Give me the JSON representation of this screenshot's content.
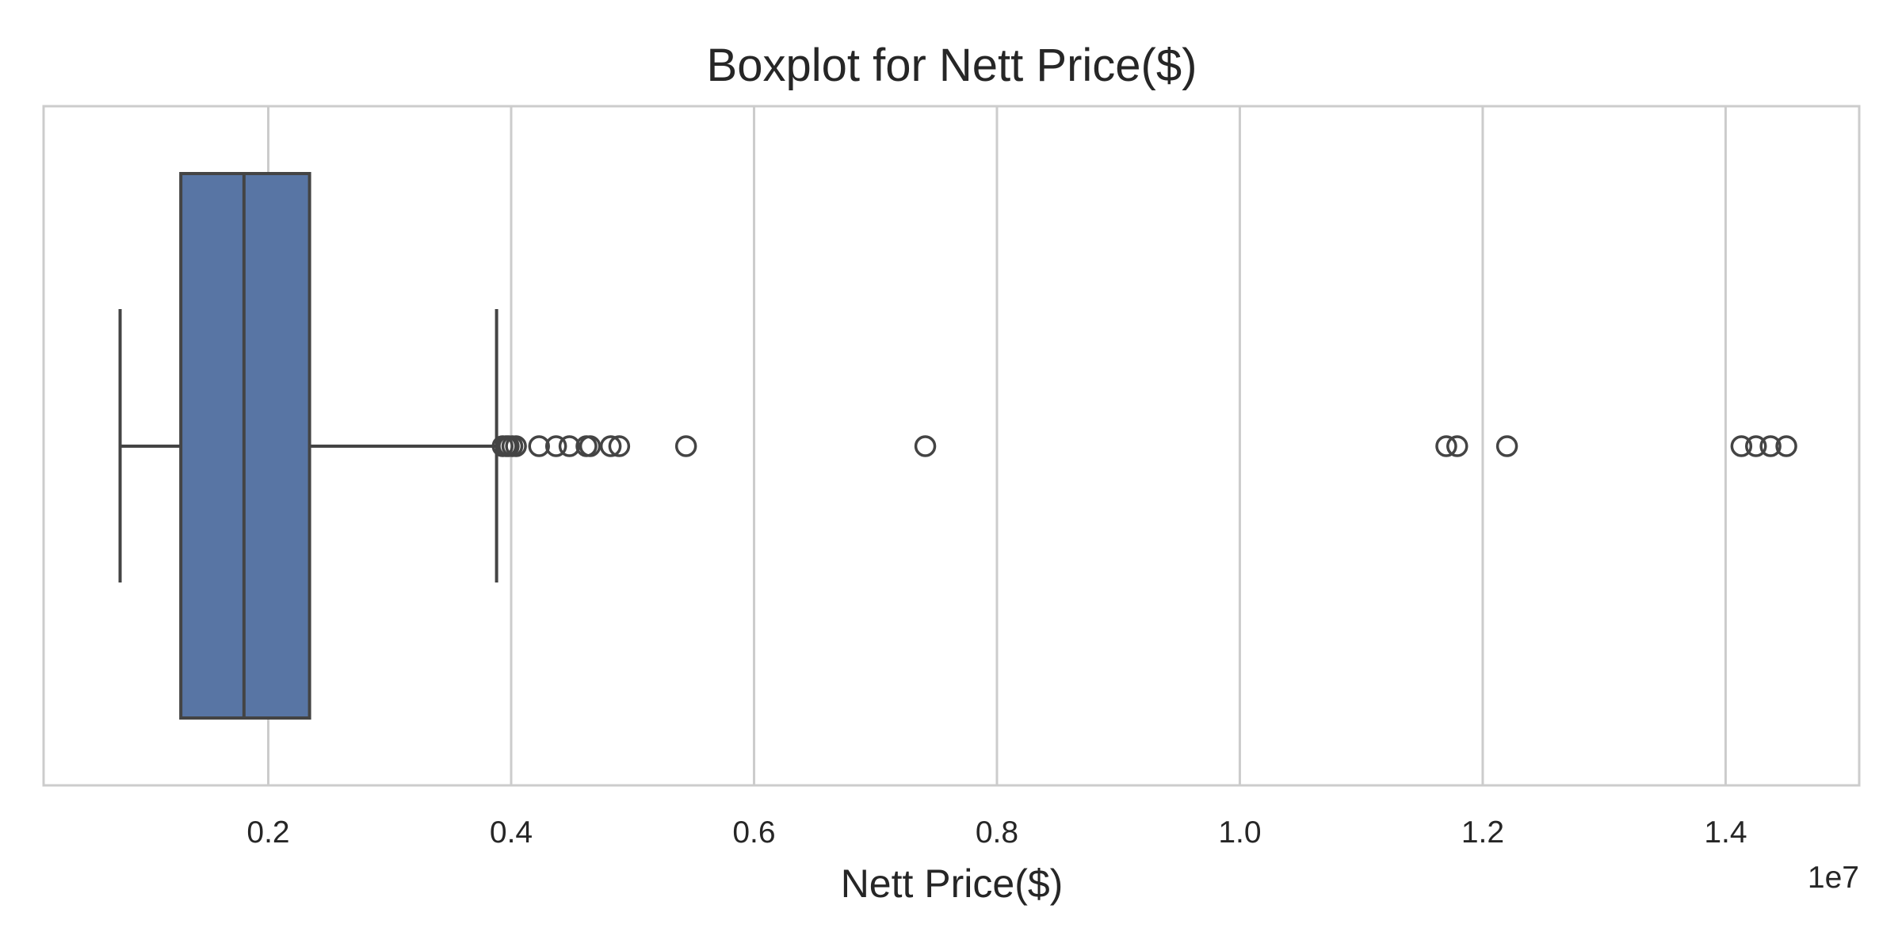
{
  "chart_data": {
    "type": "boxplot",
    "title": "Boxplot for Nett Price($)",
    "xlabel": "Nett Price($)",
    "ylabel": "",
    "offset_text": "1e7",
    "xlim": [
      0.015,
      1.51
    ],
    "xticks": [
      0.2,
      0.4,
      0.6,
      0.8,
      1.0,
      1.2,
      1.4
    ],
    "xtick_labels": [
      "0.2",
      "0.4",
      "0.6",
      "0.8",
      "1.0",
      "1.2",
      "1.4"
    ],
    "grid": true,
    "box_color": "#5875a4",
    "line_color": "#444444",
    "grid_color": "#cccccc",
    "box": {
      "whisker_low": 0.078,
      "q1": 0.128,
      "median": 0.18,
      "q3": 0.234,
      "whisker_high": 0.388
    },
    "outliers": [
      0.393,
      0.396,
      0.398,
      0.401,
      0.404,
      0.423,
      0.437,
      0.448,
      0.462,
      0.465,
      0.482,
      0.489,
      0.544,
      0.741,
      1.17,
      1.179,
      1.22,
      1.413,
      1.425,
      1.437,
      1.45
    ]
  }
}
